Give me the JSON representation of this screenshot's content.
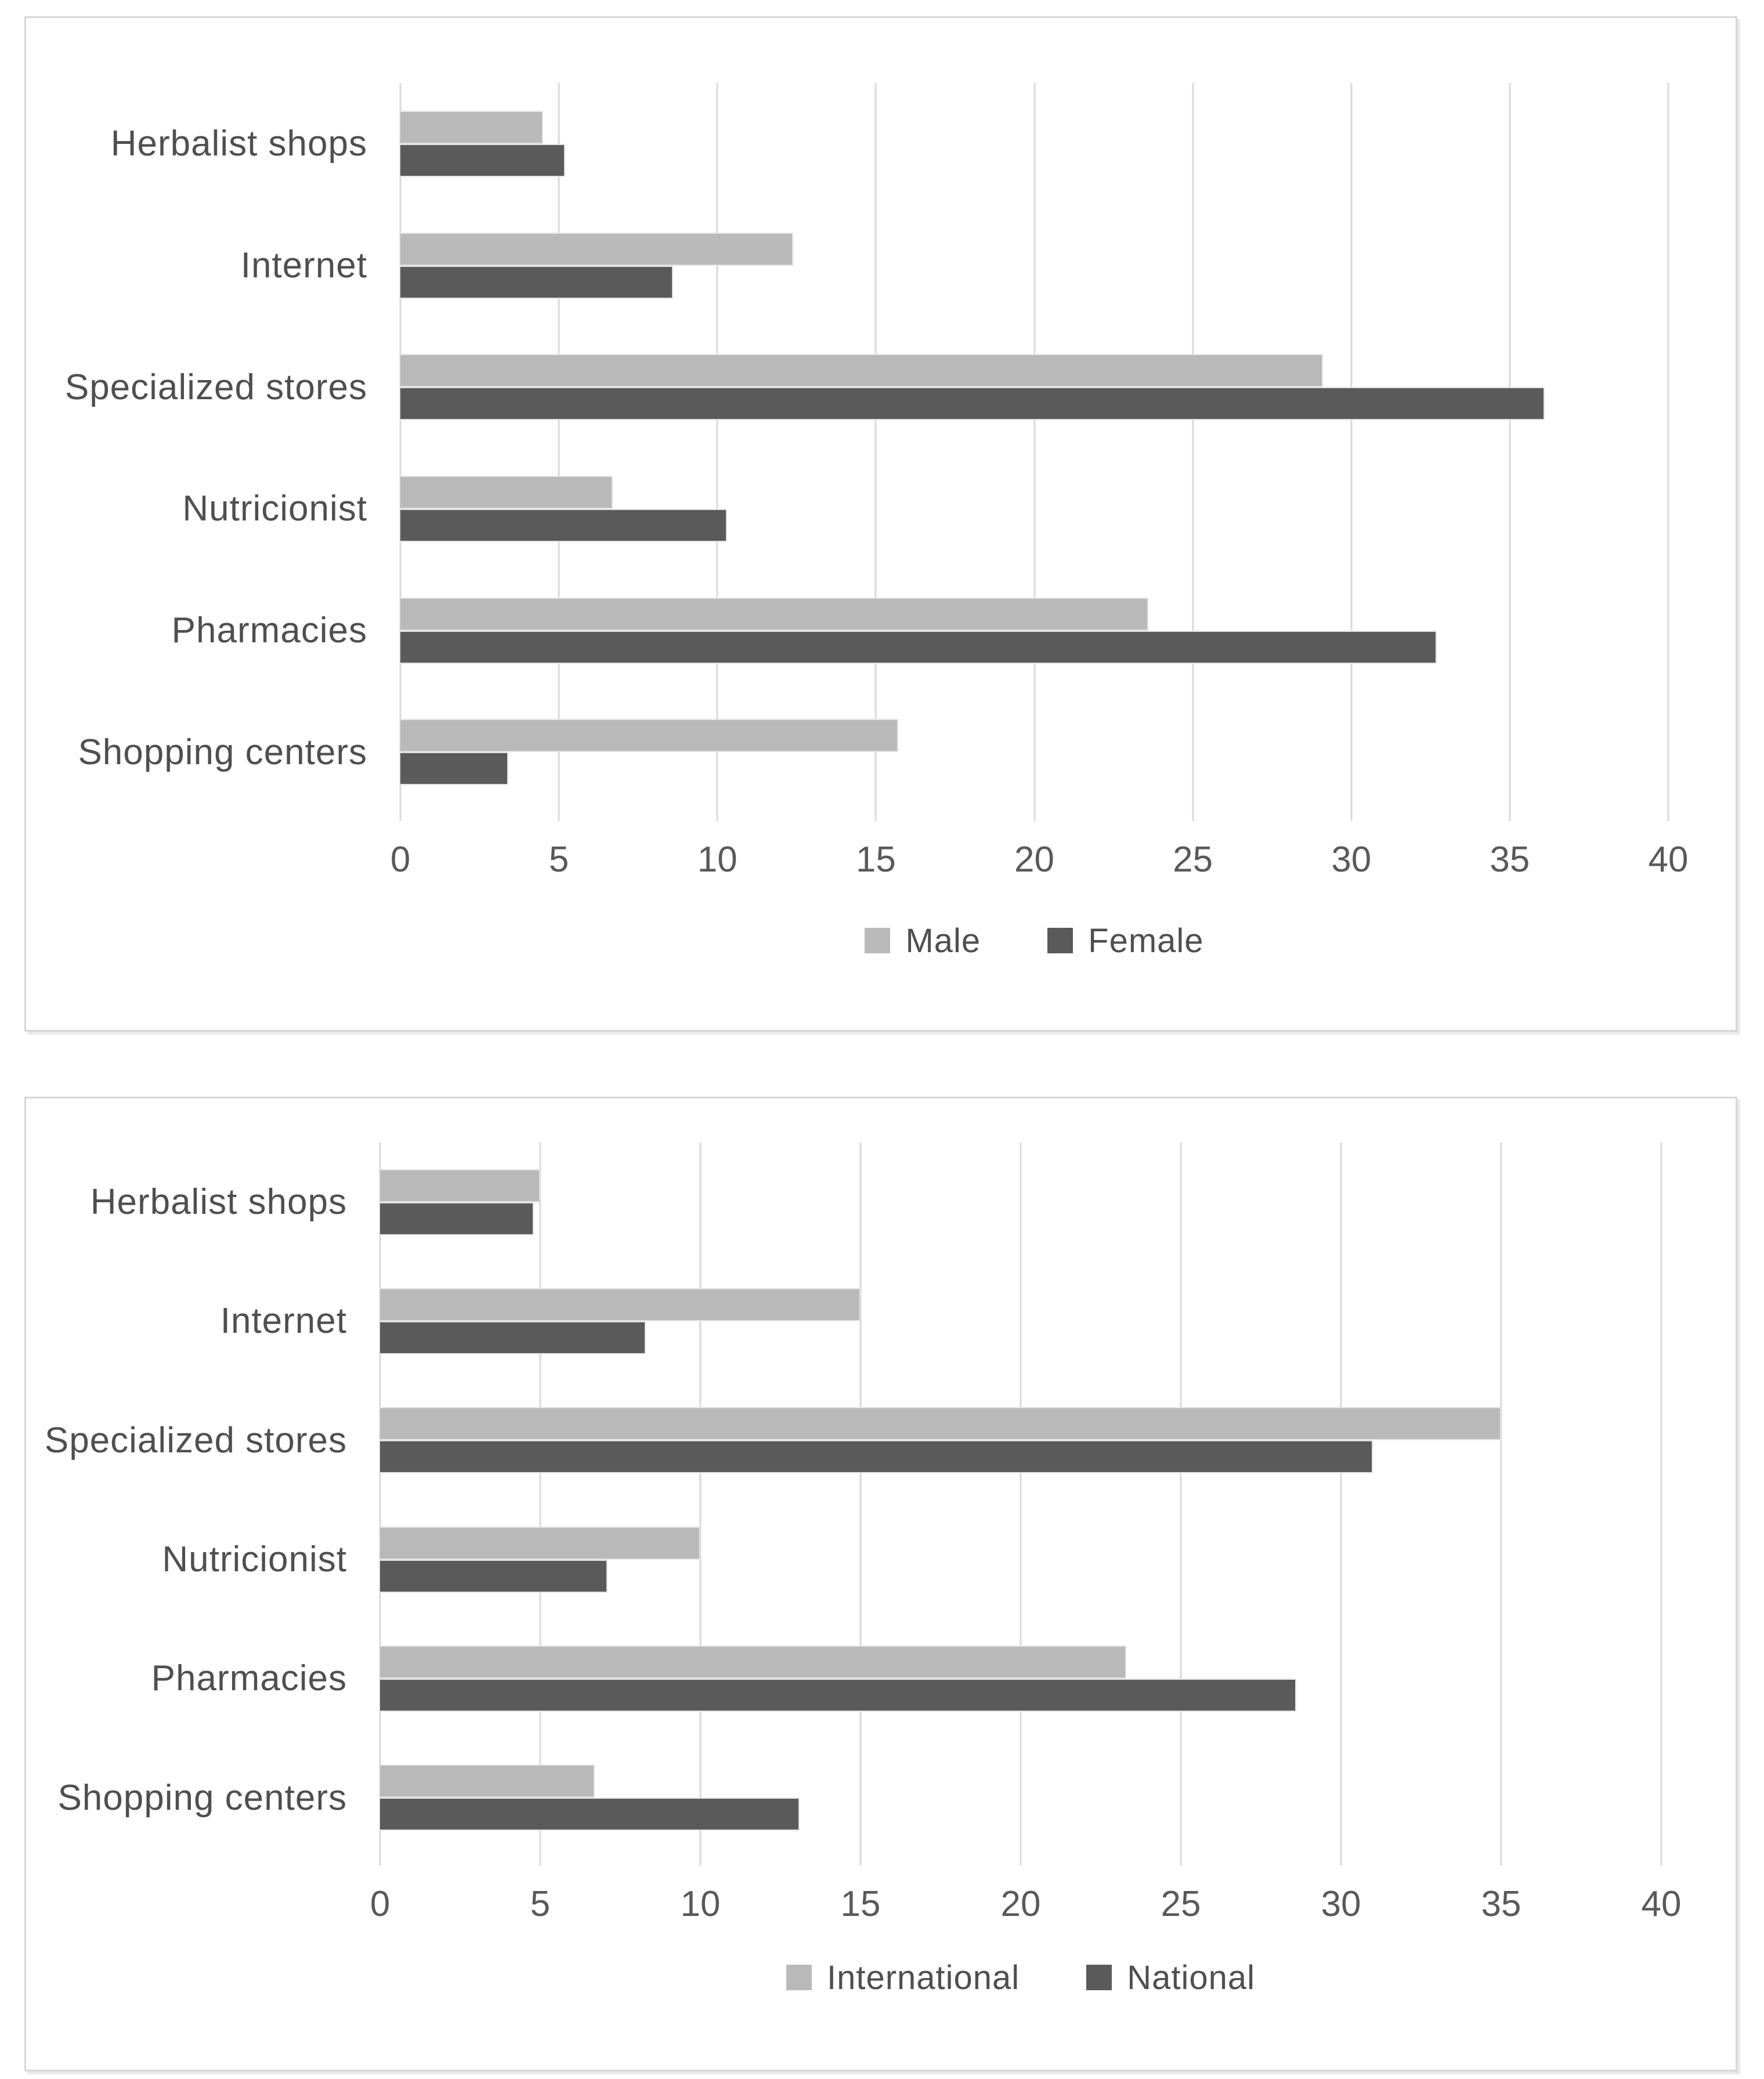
{
  "colors": {
    "bar_light": "#b9b9b9",
    "bar_dark": "#5a5a5a",
    "gridline": "#d9d9d9",
    "text": "#595959",
    "panel_border": "#d6d6d6"
  },
  "chart_data": [
    {
      "type": "bar",
      "orientation": "horizontal",
      "title": "",
      "xlabel": "",
      "ylabel": "",
      "categories": [
        "Herbalist shops",
        "Internet",
        "Specialized stores",
        "Nutricionist",
        "Pharmacies",
        "Shopping centers"
      ],
      "series": [
        {
          "name": "Male",
          "color": "#b9b9b9",
          "values": [
            4.5,
            12.4,
            29.1,
            6.7,
            23.6,
            15.7
          ]
        },
        {
          "name": "Female",
          "color": "#5a5a5a",
          "values": [
            5.2,
            8.6,
            36.1,
            10.3,
            32.7,
            3.4
          ]
        }
      ],
      "xlim": [
        0,
        40
      ],
      "xticks": [
        0,
        5,
        10,
        15,
        20,
        25,
        30,
        35,
        40
      ],
      "grid": "vertical",
      "legend_position": "bottom"
    },
    {
      "type": "bar",
      "orientation": "horizontal",
      "title": "",
      "xlabel": "",
      "ylabel": "",
      "categories": [
        "Herbalist shops",
        "Internet",
        "Specialized stores",
        "Nutricionist",
        "Pharmacies",
        "Shopping centers"
      ],
      "series": [
        {
          "name": "International",
          "color": "#b9b9b9",
          "values": [
            5.0,
            15.0,
            35.0,
            10.0,
            23.3,
            6.7
          ]
        },
        {
          "name": "National",
          "color": "#5a5a5a",
          "values": [
            4.8,
            8.3,
            31.0,
            7.1,
            28.6,
            13.1
          ]
        }
      ],
      "xlim": [
        0,
        40
      ],
      "xticks": [
        0,
        5,
        10,
        15,
        20,
        25,
        30,
        35,
        40
      ],
      "grid": "vertical",
      "legend_position": "bottom"
    }
  ]
}
